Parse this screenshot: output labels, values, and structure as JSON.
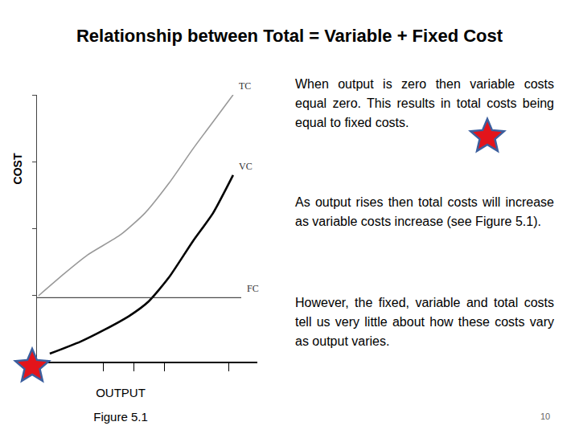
{
  "title": "Relationship between Total = Variable + Fixed Cost",
  "chart_data": {
    "type": "line",
    "x_label": "OUTPUT",
    "y_label": "COST",
    "caption": "Figure 5.1",
    "xlim": [
      0,
      100
    ],
    "ylim": [
      0,
      100
    ],
    "xticks": [
      30,
      44,
      58,
      87
    ],
    "yticks": [
      25,
      50,
      75,
      100
    ],
    "tick_labels": false,
    "grid": false,
    "series": [
      {
        "name": "TC",
        "color": "#999999",
        "x": [
          0.7,
          12.4,
          23,
          38,
          49,
          60,
          71,
          80,
          89
        ],
        "values": [
          24.7,
          33,
          40,
          47.6,
          55.7,
          67,
          80,
          90,
          100
        ]
      },
      {
        "name": "VC",
        "color": "#000000",
        "x": [
          5.8,
          19.7,
          30.7,
          41.6,
          50.7,
          59.9,
          70.8,
          79.9,
          89
        ],
        "values": [
          3,
          7.5,
          12,
          17,
          22.6,
          31.6,
          45.2,
          55.7,
          69.9
        ]
      },
      {
        "name": "FC",
        "color": "#222222",
        "x": [
          0,
          92.7
        ],
        "values": [
          24,
          24
        ]
      }
    ]
  },
  "paragraphs": [
    "When output is zero then variable costs equal zero. This results in total costs being equal to fixed costs.",
    "As output rises then total costs will increase as variable costs increase (see Figure 5.1).",
    "However, the fixed, variable and total costs tell us very little about how these costs vary as output varies."
  ],
  "page_number": 10
}
